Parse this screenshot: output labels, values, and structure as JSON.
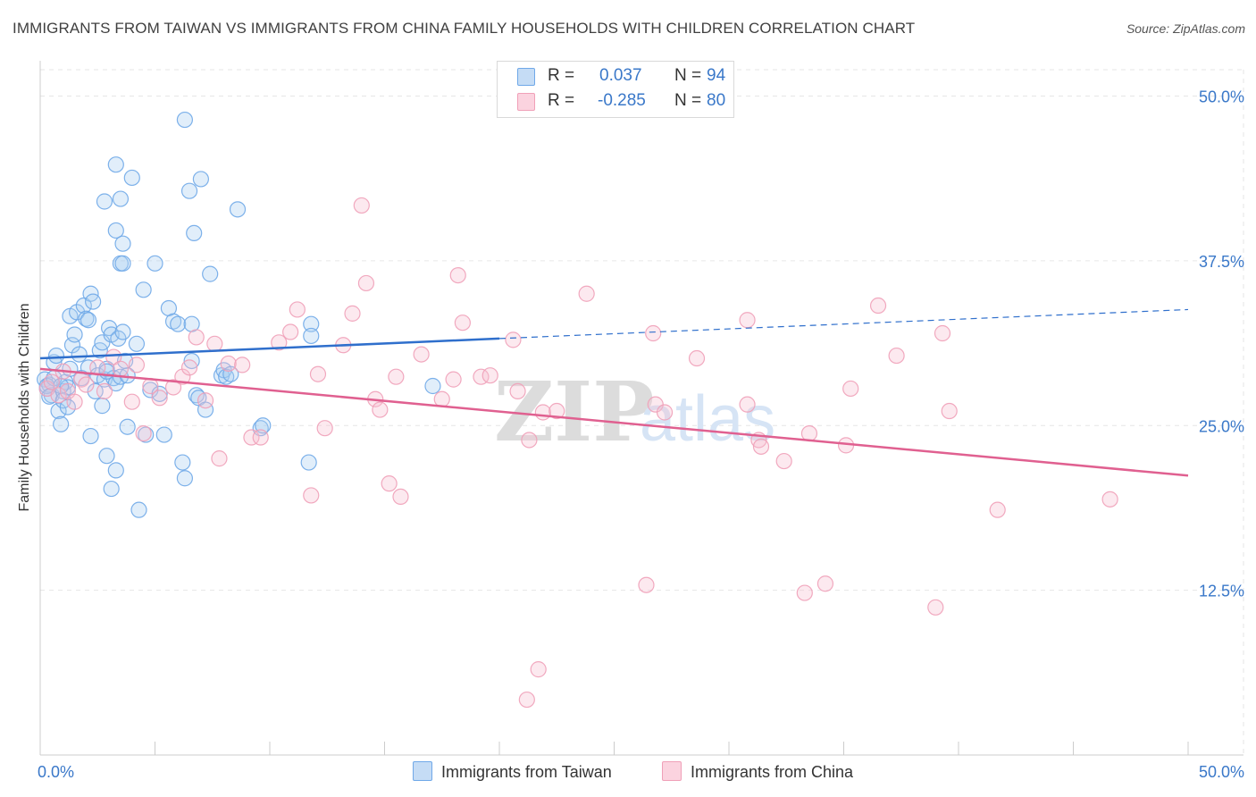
{
  "title": "IMMIGRANTS FROM TAIWAN VS IMMIGRANTS FROM CHINA FAMILY HOUSEHOLDS WITH CHILDREN CORRELATION CHART",
  "source": "Source: ZipAtlas.com",
  "watermark": "ZIPatlas",
  "legend": {
    "rows": [
      {
        "r_label": "R =",
        "r_value": "0.037",
        "n_label": "N =",
        "n_value": "94"
      },
      {
        "r_label": "R =",
        "r_value": "-0.285",
        "n_label": "N =",
        "n_value": "80"
      }
    ]
  },
  "chart_data": {
    "type": "scatter",
    "ylabel": "Family Households with Children",
    "xlim": [
      0,
      50
    ],
    "ylim": [
      0,
      52
    ],
    "x_tick_labels": [
      "0.0%",
      "50.0%"
    ],
    "y_ticks": [
      12.5,
      25.0,
      37.5,
      50.0
    ],
    "y_tick_labels": [
      "12.5%",
      "25.0%",
      "37.5%",
      "50.0%"
    ],
    "grid": true,
    "legend_position": "bottom-center",
    "colors": {
      "taiwan": "#6fa8e8",
      "china": "#f0a0b8",
      "taiwan_line": "#2f6fcc",
      "china_line": "#e06090"
    },
    "series": [
      {
        "name": "Immigrants from Taiwan",
        "trend": {
          "x1": 0,
          "y1": 30.1,
          "x2": 20,
          "y2": 31.6,
          "dash_x2": 50,
          "dash_y2": 33.8
        },
        "points": [
          [
            0.2,
            28.5
          ],
          [
            0.3,
            27.8
          ],
          [
            0.4,
            28.1
          ],
          [
            0.5,
            27.3
          ],
          [
            0.6,
            29.8
          ],
          [
            0.7,
            30.3
          ],
          [
            0.8,
            26.1
          ],
          [
            0.9,
            25.1
          ],
          [
            1.0,
            27.6
          ],
          [
            1.1,
            28.3
          ],
          [
            1.2,
            27.9
          ],
          [
            1.3,
            33.3
          ],
          [
            1.4,
            31.1
          ],
          [
            1.5,
            31.9
          ],
          [
            1.6,
            33.6
          ],
          [
            1.7,
            30.4
          ],
          [
            1.8,
            28.6
          ],
          [
            1.9,
            34.1
          ],
          [
            2.0,
            33.1
          ],
          [
            2.1,
            29.4
          ],
          [
            2.2,
            35.0
          ],
          [
            2.3,
            34.4
          ],
          [
            2.4,
            27.6
          ],
          [
            2.5,
            28.8
          ],
          [
            2.6,
            30.7
          ],
          [
            2.7,
            31.3
          ],
          [
            2.8,
            28.5
          ],
          [
            2.9,
            29.3
          ],
          [
            3.0,
            32.4
          ],
          [
            3.1,
            31.9
          ],
          [
            3.2,
            28.6
          ],
          [
            0.3,
            28.0
          ],
          [
            0.4,
            27.2
          ],
          [
            0.6,
            28.6
          ],
          [
            0.9,
            28.0
          ],
          [
            1.0,
            26.9
          ],
          [
            1.2,
            26.4
          ],
          [
            2.1,
            33.0
          ],
          [
            2.9,
            29.1
          ],
          [
            3.3,
            28.2
          ],
          [
            3.4,
            31.6
          ],
          [
            3.5,
            28.7
          ],
          [
            3.6,
            32.1
          ],
          [
            3.7,
            29.9
          ],
          [
            3.8,
            28.8
          ],
          [
            2.2,
            24.2
          ],
          [
            2.9,
            22.7
          ],
          [
            3.1,
            20.2
          ],
          [
            3.3,
            21.6
          ],
          [
            4.3,
            18.6
          ],
          [
            3.8,
            24.9
          ],
          [
            2.7,
            26.5
          ],
          [
            3.3,
            44.8
          ],
          [
            3.5,
            37.3
          ],
          [
            3.3,
            39.8
          ],
          [
            3.5,
            42.2
          ],
          [
            2.8,
            42.0
          ],
          [
            3.6,
            38.8
          ],
          [
            3.6,
            37.3
          ],
          [
            4.0,
            43.8
          ],
          [
            4.2,
            31.2
          ],
          [
            4.5,
            35.3
          ],
          [
            4.6,
            24.3
          ],
          [
            4.8,
            27.7
          ],
          [
            5.0,
            37.3
          ],
          [
            5.2,
            27.4
          ],
          [
            5.4,
            24.3
          ],
          [
            5.6,
            33.9
          ],
          [
            5.8,
            32.9
          ],
          [
            6.0,
            32.7
          ],
          [
            6.3,
            48.2
          ],
          [
            6.5,
            42.8
          ],
          [
            6.6,
            32.7
          ],
          [
            6.6,
            29.9
          ],
          [
            6.7,
            39.6
          ],
          [
            6.8,
            27.3
          ],
          [
            6.9,
            27.1
          ],
          [
            7.0,
            43.7
          ],
          [
            7.2,
            26.2
          ],
          [
            7.4,
            36.5
          ],
          [
            7.9,
            28.8
          ],
          [
            8.0,
            29.2
          ],
          [
            8.1,
            28.7
          ],
          [
            8.3,
            28.9
          ],
          [
            8.6,
            41.4
          ],
          [
            9.6,
            24.8
          ],
          [
            9.7,
            25.0
          ],
          [
            11.8,
            32.7
          ],
          [
            11.8,
            31.8
          ],
          [
            11.7,
            22.2
          ],
          [
            17.1,
            28.0
          ],
          [
            6.2,
            22.2
          ],
          [
            6.3,
            21.0
          ],
          [
            1.3,
            29.3
          ]
        ]
      },
      {
        "name": "Immigrants from China",
        "trend": {
          "x1": 0,
          "y1": 29.3,
          "x2": 50,
          "y2": 21.2
        },
        "points": [
          [
            0.3,
            27.8
          ],
          [
            0.5,
            28.3
          ],
          [
            0.8,
            27.3
          ],
          [
            1.0,
            29.1
          ],
          [
            1.2,
            27.6
          ],
          [
            1.5,
            26.8
          ],
          [
            1.8,
            28.5
          ],
          [
            2.0,
            28.1
          ],
          [
            2.5,
            29.4
          ],
          [
            2.8,
            27.6
          ],
          [
            3.2,
            30.2
          ],
          [
            3.5,
            29.3
          ],
          [
            4.0,
            26.8
          ],
          [
            4.2,
            29.6
          ],
          [
            4.5,
            24.4
          ],
          [
            4.8,
            28.0
          ],
          [
            5.2,
            27.1
          ],
          [
            5.8,
            27.9
          ],
          [
            6.2,
            28.7
          ],
          [
            6.5,
            29.4
          ],
          [
            6.8,
            31.7
          ],
          [
            7.2,
            26.9
          ],
          [
            7.6,
            31.2
          ],
          [
            7.8,
            22.5
          ],
          [
            8.2,
            29.7
          ],
          [
            8.8,
            29.6
          ],
          [
            9.2,
            24.1
          ],
          [
            9.6,
            24.1
          ],
          [
            10.4,
            31.3
          ],
          [
            10.9,
            32.1
          ],
          [
            11.2,
            33.8
          ],
          [
            11.8,
            19.7
          ],
          [
            12.1,
            28.9
          ],
          [
            12.4,
            24.8
          ],
          [
            13.2,
            31.1
          ],
          [
            13.6,
            33.5
          ],
          [
            14.2,
            35.8
          ],
          [
            14.6,
            27.0
          ],
          [
            14.8,
            26.2
          ],
          [
            15.2,
            20.6
          ],
          [
            15.5,
            28.7
          ],
          [
            15.7,
            19.6
          ],
          [
            16.6,
            30.4
          ],
          [
            17.5,
            27.0
          ],
          [
            18.0,
            28.5
          ],
          [
            18.2,
            36.4
          ],
          [
            18.4,
            32.8
          ],
          [
            19.2,
            28.7
          ],
          [
            19.6,
            28.8
          ],
          [
            20.6,
            31.5
          ],
          [
            20.8,
            27.6
          ],
          [
            21.3,
            23.9
          ],
          [
            21.9,
            26.0
          ],
          [
            22.5,
            26.1
          ],
          [
            23.8,
            35.0
          ],
          [
            26.4,
            12.9
          ],
          [
            26.7,
            32.0
          ],
          [
            26.8,
            26.6
          ],
          [
            27.2,
            26.0
          ],
          [
            28.6,
            30.1
          ],
          [
            30.8,
            33.0
          ],
          [
            30.8,
            26.6
          ],
          [
            31.3,
            23.9
          ],
          [
            31.4,
            23.4
          ],
          [
            32.4,
            22.3
          ],
          [
            33.3,
            12.3
          ],
          [
            33.5,
            24.4
          ],
          [
            34.2,
            13.0
          ],
          [
            35.1,
            23.5
          ],
          [
            35.3,
            27.8
          ],
          [
            36.5,
            34.1
          ],
          [
            37.3,
            30.3
          ],
          [
            39.0,
            11.2
          ],
          [
            39.3,
            32.0
          ],
          [
            39.6,
            26.1
          ],
          [
            41.7,
            18.6
          ],
          [
            46.6,
            19.4
          ],
          [
            14.0,
            41.7
          ],
          [
            21.2,
            4.2
          ],
          [
            21.7,
            6.5
          ]
        ]
      }
    ]
  }
}
